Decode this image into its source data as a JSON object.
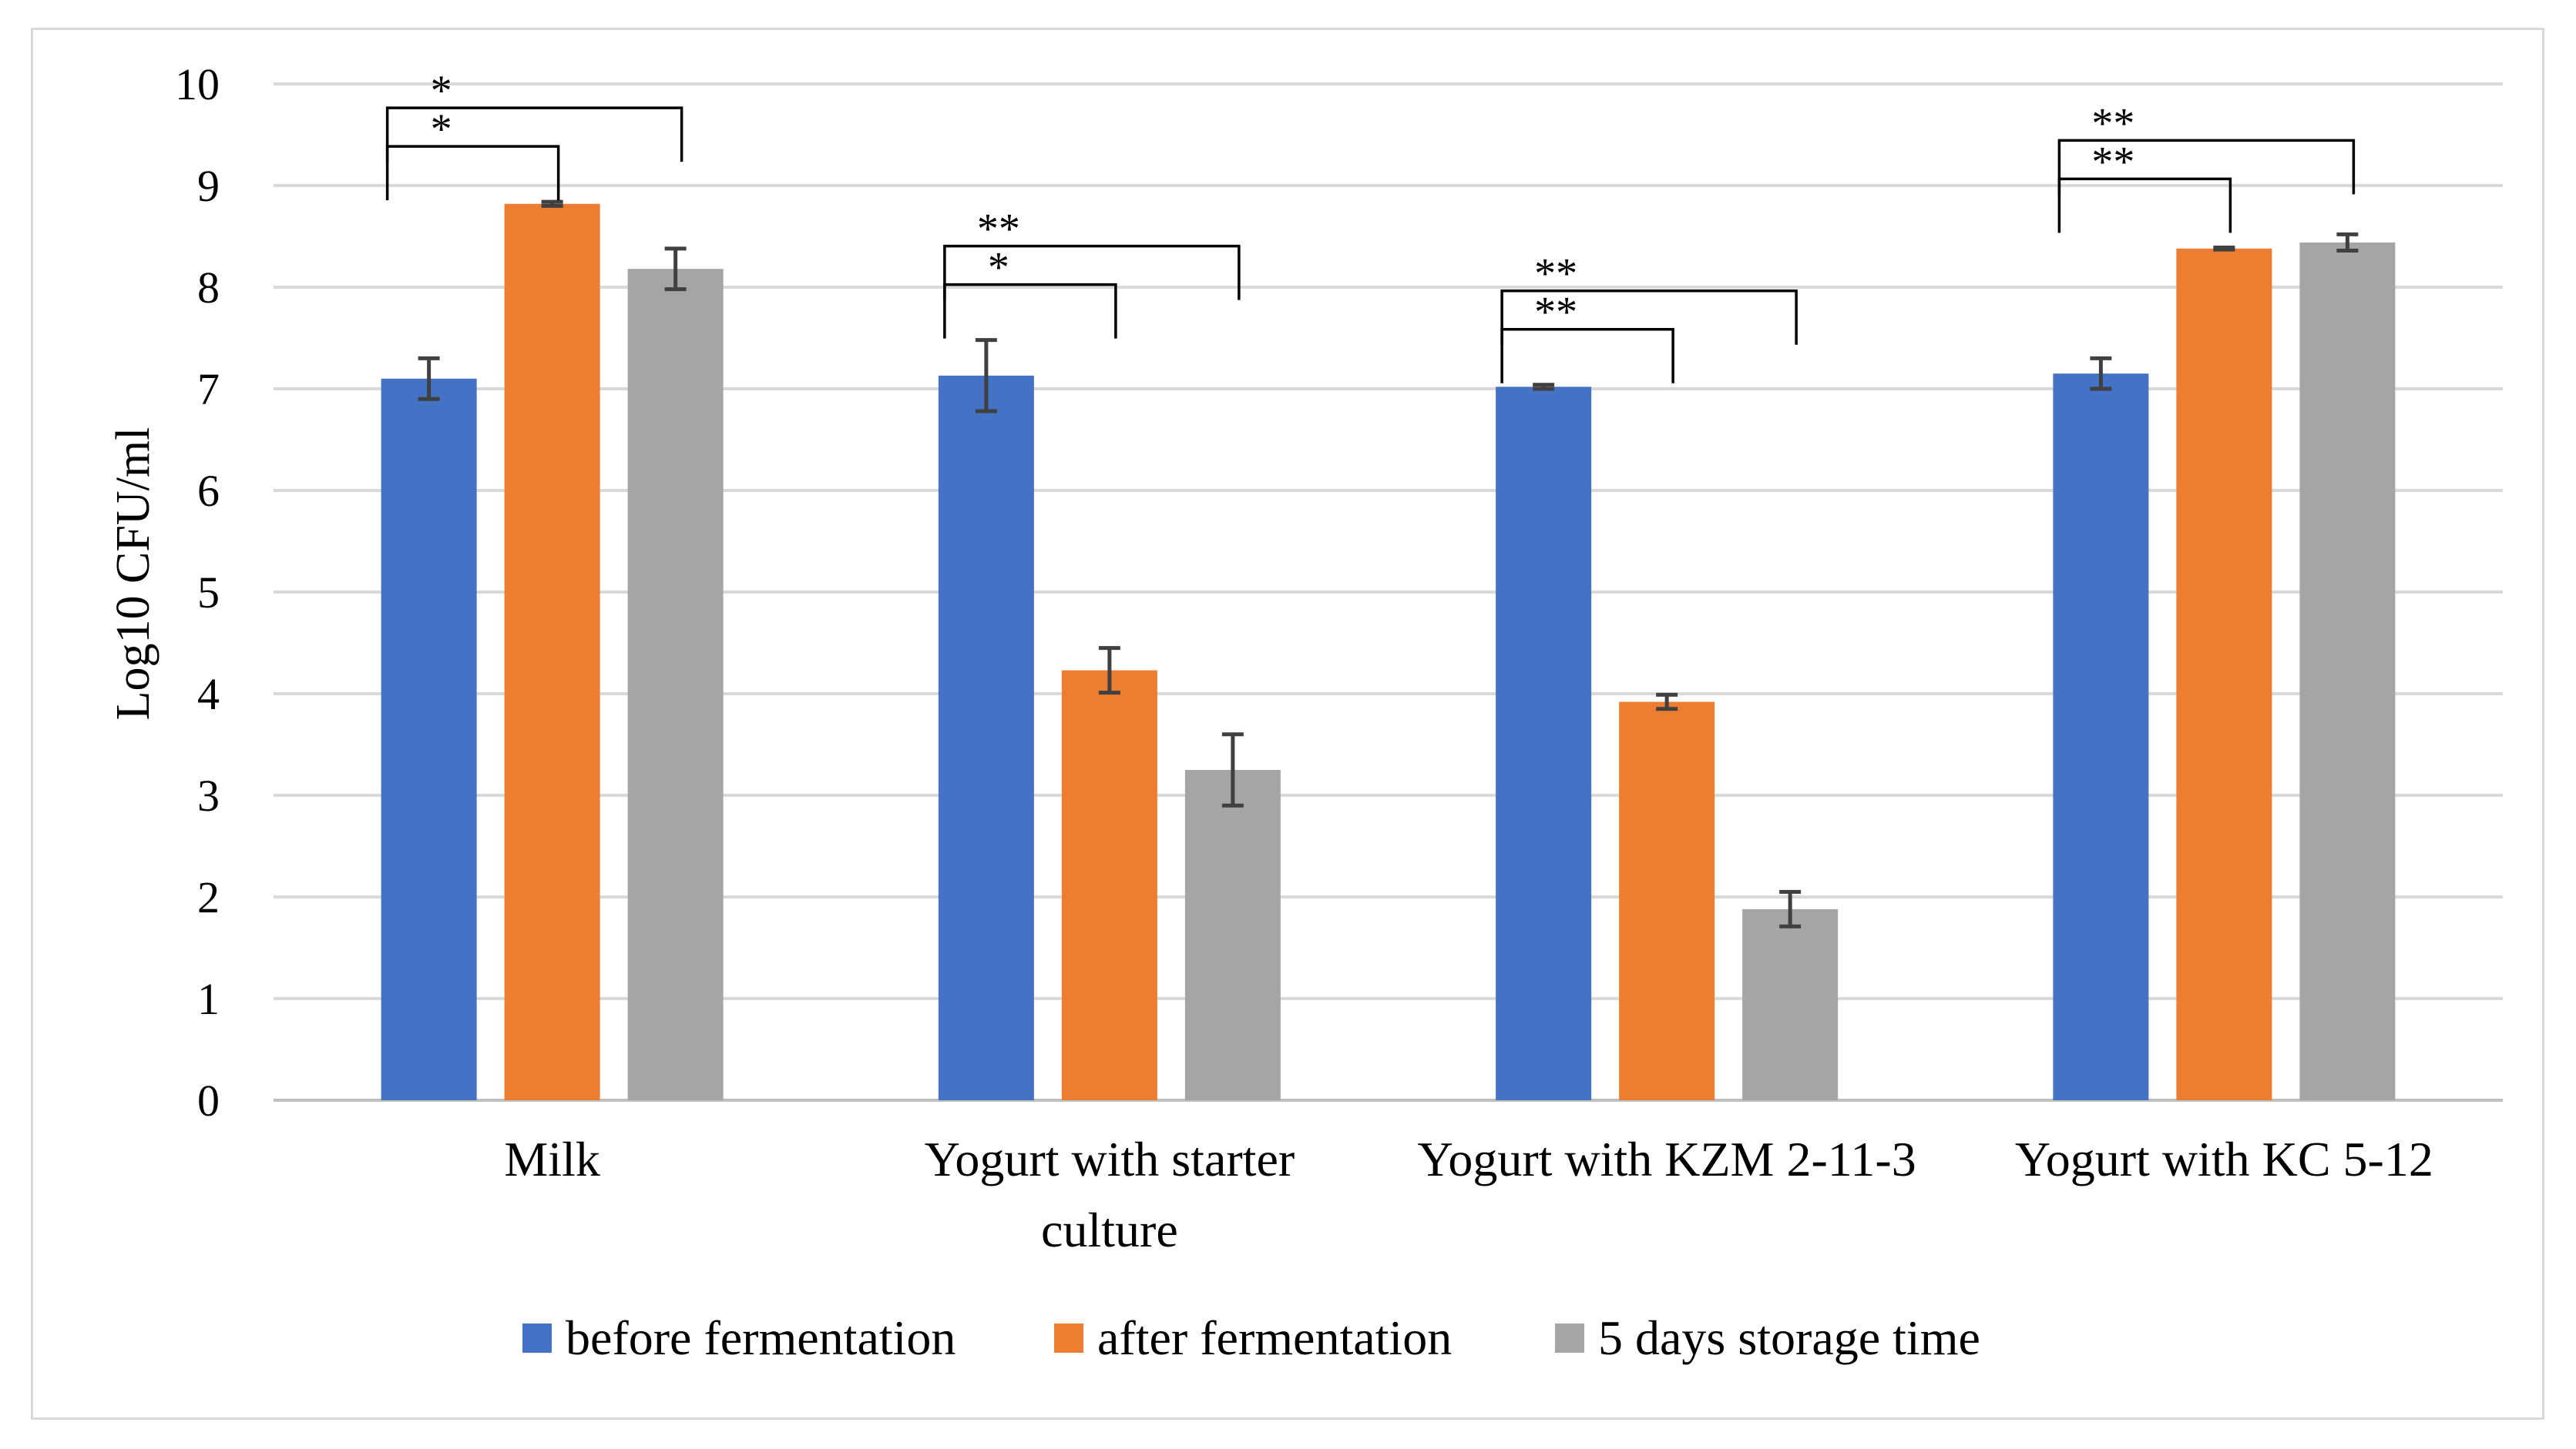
{
  "chart_data": {
    "type": "bar",
    "title": "",
    "xlabel": "",
    "ylabel": "Log10 CFU/ml",
    "ylim": [
      0,
      10
    ],
    "yticks": [
      "0",
      "1",
      "2",
      "3",
      "4",
      "5",
      "6",
      "7",
      "8",
      "9",
      "10"
    ],
    "grid": true,
    "legend_position": "bottom",
    "categories": [
      [
        "Milk"
      ],
      [
        "Yogurt with starter",
        "culture"
      ],
      [
        "Yogurt with KZM 2-11-3"
      ],
      [
        "Yogurt with KC 5-12"
      ]
    ],
    "series": [
      {
        "name": "before fermentation",
        "color": "#4472c4",
        "values": [
          7.1,
          7.13,
          7.02,
          7.15
        ],
        "errors": [
          0.2,
          0.35,
          0.02,
          0.15
        ]
      },
      {
        "name": "after fermentation",
        "color": "#ed7d31",
        "values": [
          8.82,
          4.23,
          3.92,
          8.38
        ],
        "errors": [
          0.02,
          0.22,
          0.07,
          0.01
        ]
      },
      {
        "name": "5 days storage time",
        "color": "#a5a5a5",
        "values": [
          8.18,
          3.25,
          1.88,
          8.44
        ],
        "errors": [
          0.2,
          0.35,
          0.17,
          0.08
        ]
      }
    ],
    "significance": [
      {
        "category": 0,
        "from_series": 0,
        "to_series": 1,
        "label": "*"
      },
      {
        "category": 0,
        "from_series": 0,
        "to_series": 2,
        "label": "*"
      },
      {
        "category": 1,
        "from_series": 0,
        "to_series": 1,
        "label": "*"
      },
      {
        "category": 1,
        "from_series": 0,
        "to_series": 2,
        "label": "**"
      },
      {
        "category": 2,
        "from_series": 0,
        "to_series": 1,
        "label": "**"
      },
      {
        "category": 2,
        "from_series": 0,
        "to_series": 2,
        "label": "**"
      },
      {
        "category": 3,
        "from_series": 0,
        "to_series": 1,
        "label": "**"
      },
      {
        "category": 3,
        "from_series": 0,
        "to_series": 2,
        "label": "**"
      }
    ]
  }
}
